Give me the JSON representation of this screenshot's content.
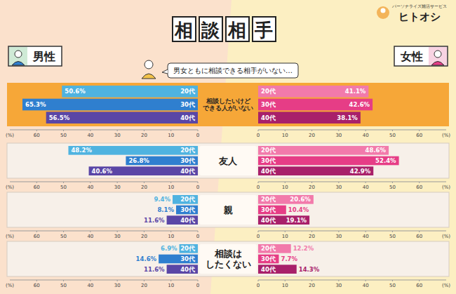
{
  "page": {
    "title": "相談相手",
    "speech": "男女ともに相談できる相手がいない…",
    "brand_tagline": "パーソナライズ婚活サービス",
    "brand_name": "ヒトオシ"
  },
  "chart_data": [
    {
      "type": "bar",
      "orientation": "horizontal",
      "title": "相談したいけどできる人がいない",
      "categories": [
        "20代",
        "30代",
        "40代"
      ],
      "series": [
        {
          "name": "男性",
          "colors": [
            "#4fb3e0",
            "#2f7fcf",
            "#5a46a6"
          ],
          "values": [
            50.6,
            65.3,
            56.5
          ],
          "value_labels": [
            "50.6%",
            "65.3%",
            "56.5%"
          ]
        },
        {
          "name": "女性",
          "colors": [
            "#f27aab",
            "#e63d86",
            "#a8206a"
          ],
          "values": [
            41.1,
            42.6,
            38.1
          ],
          "value_labels": [
            "41.1%",
            "42.6%",
            "38.1%"
          ]
        }
      ],
      "xlim": [
        0,
        70
      ],
      "xticks": [
        0,
        10,
        20,
        30,
        40,
        50,
        60
      ],
      "xlabel": "(%)",
      "data_labels": true,
      "grid": false,
      "legend": "top"
    },
    {
      "type": "bar",
      "orientation": "horizontal",
      "title": "友人",
      "categories": [
        "20代",
        "30代",
        "40代"
      ],
      "series": [
        {
          "name": "男性",
          "colors": [
            "#4fb3e0",
            "#2f7fcf",
            "#5a46a6"
          ],
          "values": [
            48.2,
            26.8,
            40.6
          ],
          "value_labels": [
            "48.2%",
            "26.8%",
            "40.6%"
          ]
        },
        {
          "name": "女性",
          "colors": [
            "#f27aab",
            "#e63d86",
            "#a8206a"
          ],
          "values": [
            48.6,
            52.4,
            42.9
          ],
          "value_labels": [
            "48.6%",
            "52.4%",
            "42.9%"
          ]
        }
      ],
      "xlim": [
        0,
        70
      ],
      "xticks": [
        0,
        10,
        20,
        30,
        40,
        50,
        60
      ],
      "xlabel": "(%)",
      "data_labels": true,
      "grid": false
    },
    {
      "type": "bar",
      "orientation": "horizontal",
      "title": "親",
      "categories": [
        "20代",
        "30代",
        "40代"
      ],
      "series": [
        {
          "name": "男性",
          "colors": [
            "#4fb3e0",
            "#2f7fcf",
            "#5a46a6"
          ],
          "values": [
            9.4,
            8.1,
            11.6
          ],
          "value_labels": [
            "9.4%",
            "8.1%",
            "11.6%"
          ]
        },
        {
          "name": "女性",
          "colors": [
            "#f27aab",
            "#e63d86",
            "#a8206a"
          ],
          "values": [
            20.6,
            10.4,
            19.1
          ],
          "value_labels": [
            "20.6%",
            "10.4%",
            "19.1%"
          ]
        }
      ],
      "xlim": [
        0,
        70
      ],
      "xticks": [
        0,
        10,
        20,
        30,
        40,
        50,
        60
      ],
      "xlabel": "(%)",
      "data_labels": true,
      "grid": false
    },
    {
      "type": "bar",
      "orientation": "horizontal",
      "title": "相談はしたくない",
      "categories": [
        "20代",
        "30代",
        "40代"
      ],
      "series": [
        {
          "name": "男性",
          "colors": [
            "#4fb3e0",
            "#2f7fcf",
            "#5a46a6"
          ],
          "values": [
            6.9,
            14.6,
            11.6
          ],
          "value_labels": [
            "6.9%",
            "14.6%",
            "11.6%"
          ]
        },
        {
          "name": "女性",
          "colors": [
            "#f27aab",
            "#e63d86",
            "#a8206a"
          ],
          "values": [
            12.2,
            7.7,
            14.3
          ],
          "value_labels": [
            "12.2%",
            "7.7%",
            "14.3%"
          ]
        }
      ],
      "xlim": [
        0,
        70
      ],
      "xticks": [
        0,
        10,
        20,
        30,
        40,
        50,
        60
      ],
      "xlabel": "(%)",
      "data_labels": true,
      "grid": false
    }
  ]
}
